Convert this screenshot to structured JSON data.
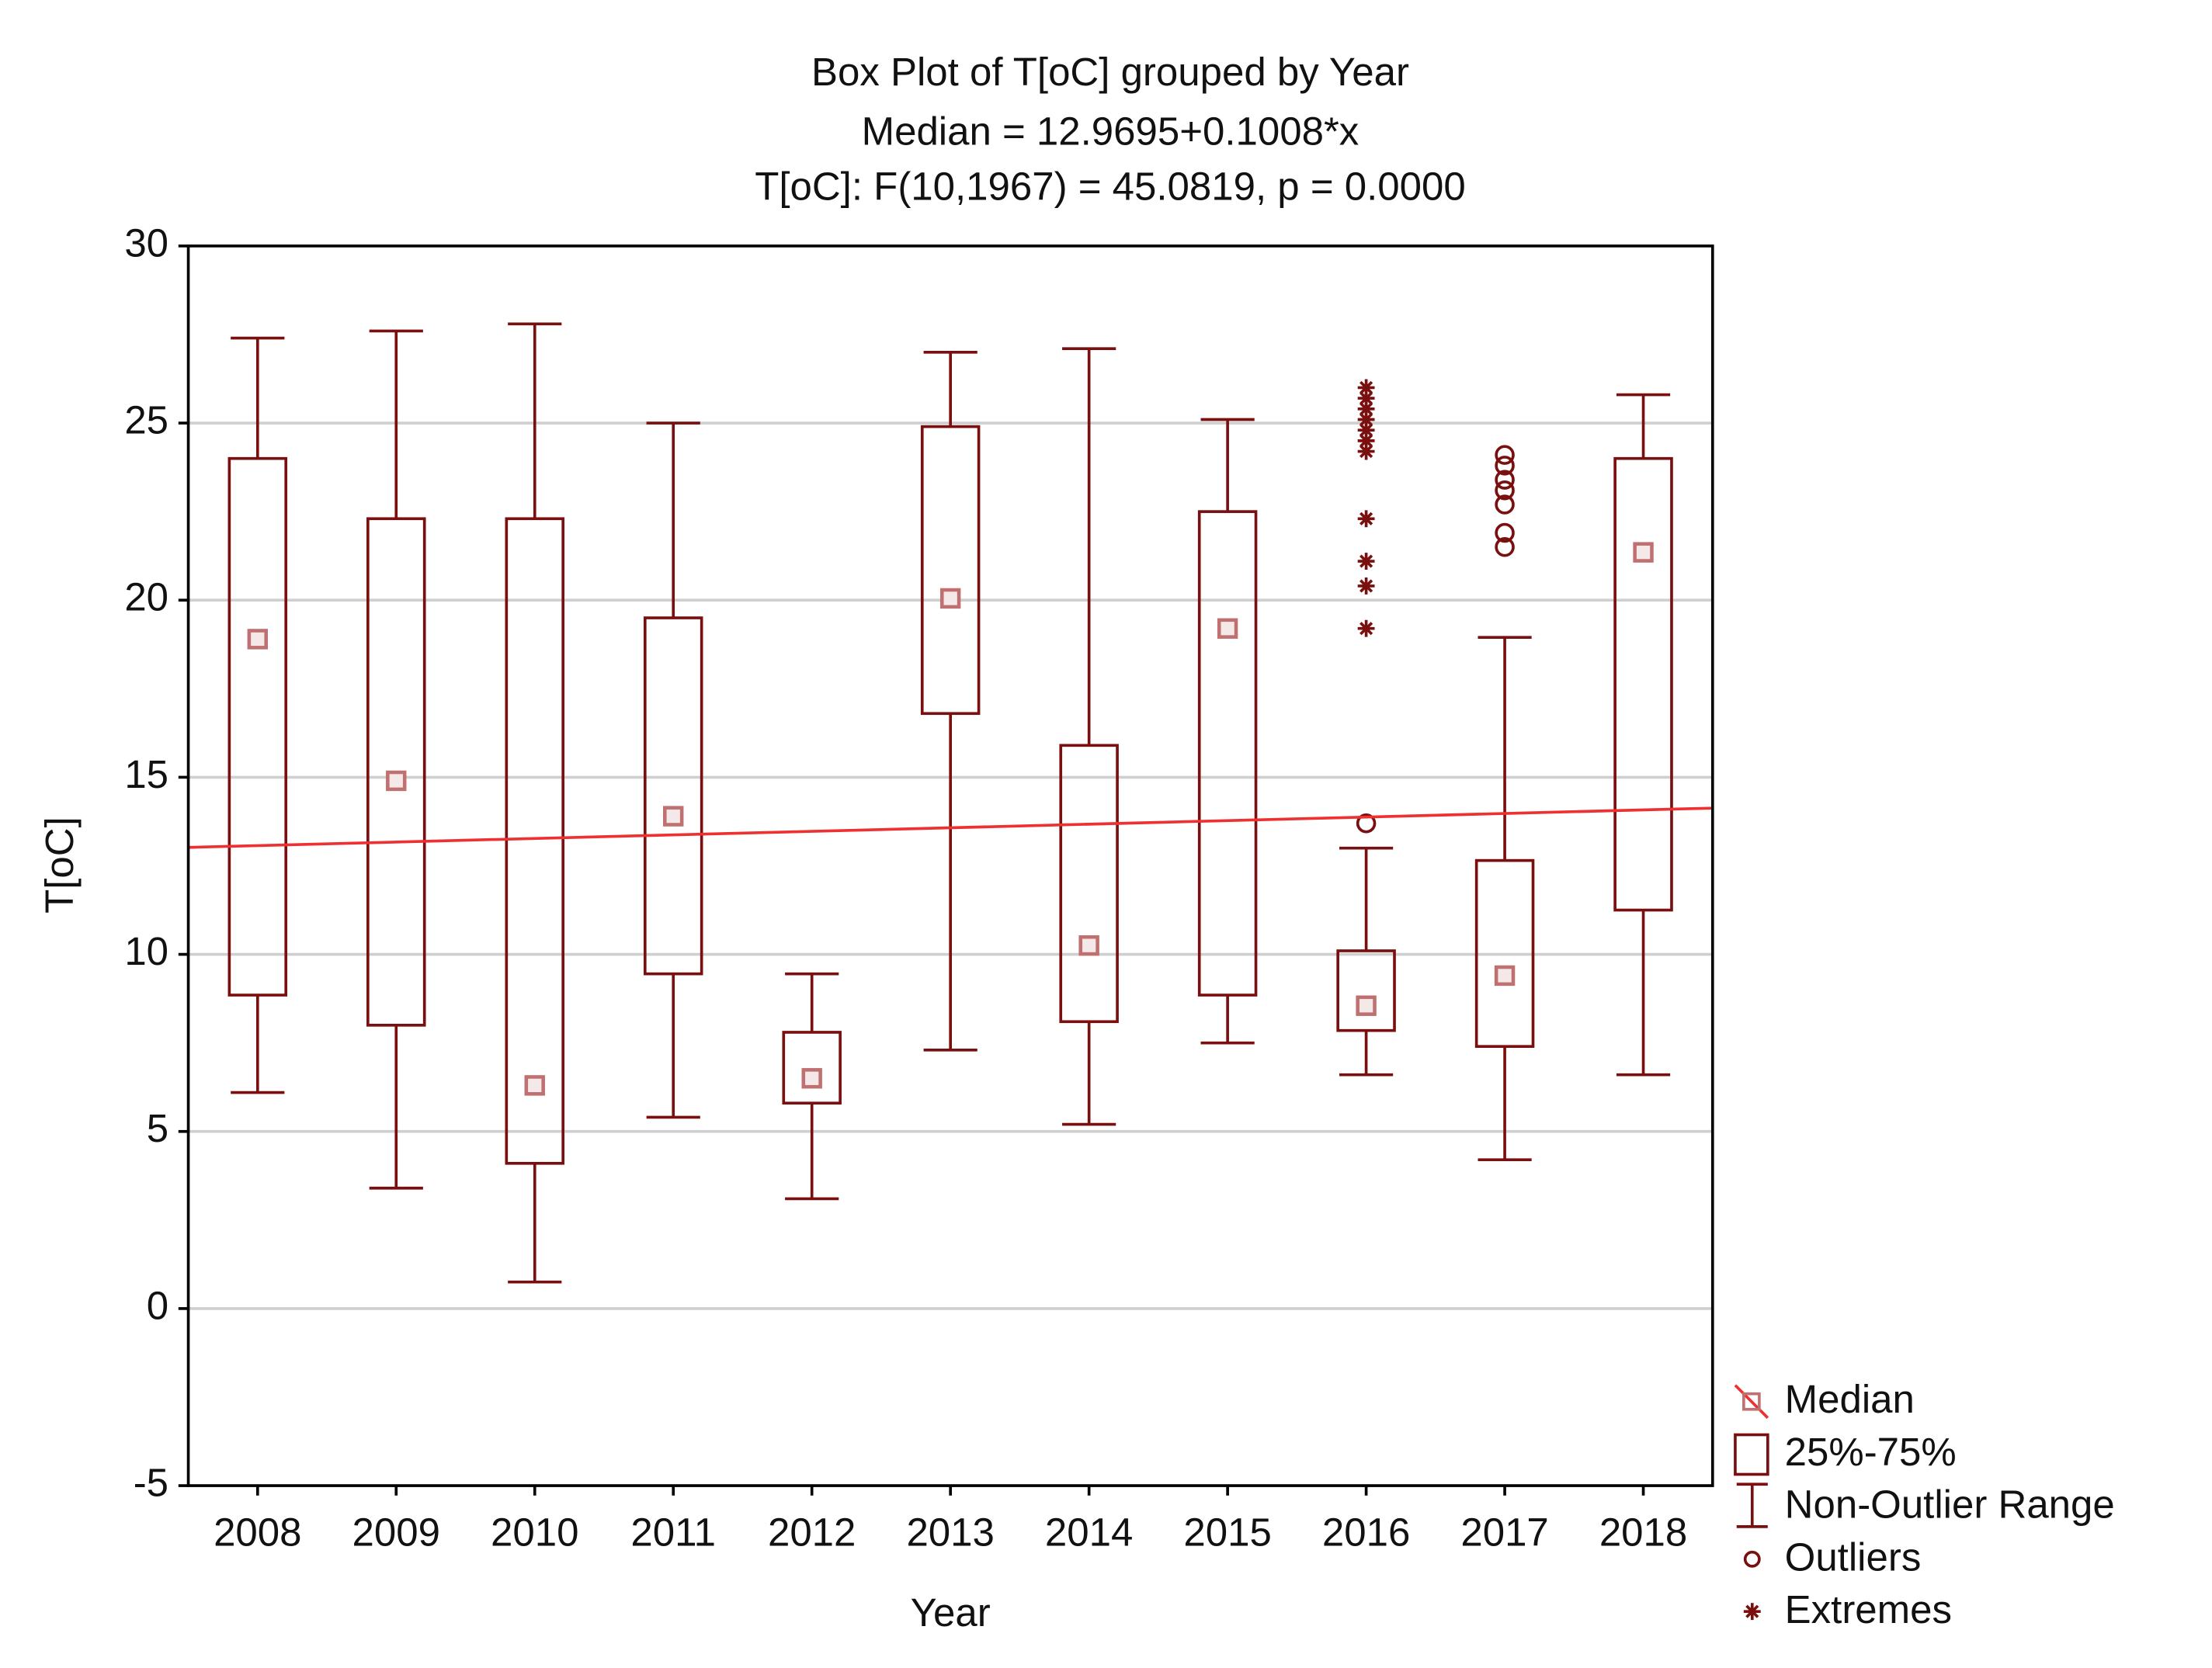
{
  "chart_data": {
    "type": "box",
    "title": "Box Plot of T[oC] grouped by  Year",
    "subtitle": "Median = 12.9695+0.1008*x",
    "subtitle2": "T[oC]:   F(10,1967) = 45.0819, p = 0.0000",
    "x_label": "Year",
    "y_label": "T[oC]",
    "categories": [
      "2008",
      "2009",
      "2010",
      "2011",
      "2012",
      "2013",
      "2014",
      "2015",
      "2016",
      "2017",
      "2018"
    ],
    "whisker_low": [
      6.1,
      3.4,
      0.75,
      5.4,
      3.1,
      7.3,
      5.2,
      7.5,
      6.6,
      4.2,
      6.6
    ],
    "q1": [
      8.85,
      8.0,
      4.1,
      9.45,
      5.8,
      16.8,
      8.1,
      8.85,
      7.85,
      7.4,
      11.25
    ],
    "median": [
      18.9,
      14.9,
      6.3,
      13.9,
      6.5,
      20.05,
      10.25,
      19.2,
      8.55,
      9.4,
      21.35
    ],
    "q3": [
      24.0,
      22.3,
      22.3,
      19.5,
      7.8,
      24.9,
      15.9,
      22.5,
      10.1,
      12.65,
      24.0
    ],
    "whisker_high": [
      27.4,
      27.6,
      27.8,
      25.0,
      9.45,
      27.0,
      27.1,
      25.1,
      13.0,
      18.95,
      25.8
    ],
    "outliers": [
      [],
      [],
      [],
      [],
      [],
      [],
      [],
      [],
      [
        13.7
      ],
      [
        24.1,
        23.8,
        23.4,
        23.1,
        22.7,
        21.9,
        21.5
      ],
      []
    ],
    "extremes": [
      [],
      [],
      [],
      [],
      [],
      [],
      [],
      [],
      [
        19.2,
        20.4,
        21.1,
        22.3,
        24.2,
        24.5,
        24.8,
        25.1,
        25.4,
        25.7,
        26.0
      ],
      [],
      []
    ],
    "trend": {
      "intercept": 12.9695,
      "slope": 0.1008,
      "color": "#ee3030"
    },
    "color": "#7a0f0f",
    "median_color": "#c07070",
    "ylim": [
      -5,
      30
    ],
    "yticks": [
      -5,
      0,
      5,
      10,
      15,
      20,
      25,
      30
    ],
    "grid": true,
    "legend": [
      "Median",
      "25%-75%",
      "Non-Outlier Range",
      "Outliers",
      "Extremes"
    ]
  }
}
